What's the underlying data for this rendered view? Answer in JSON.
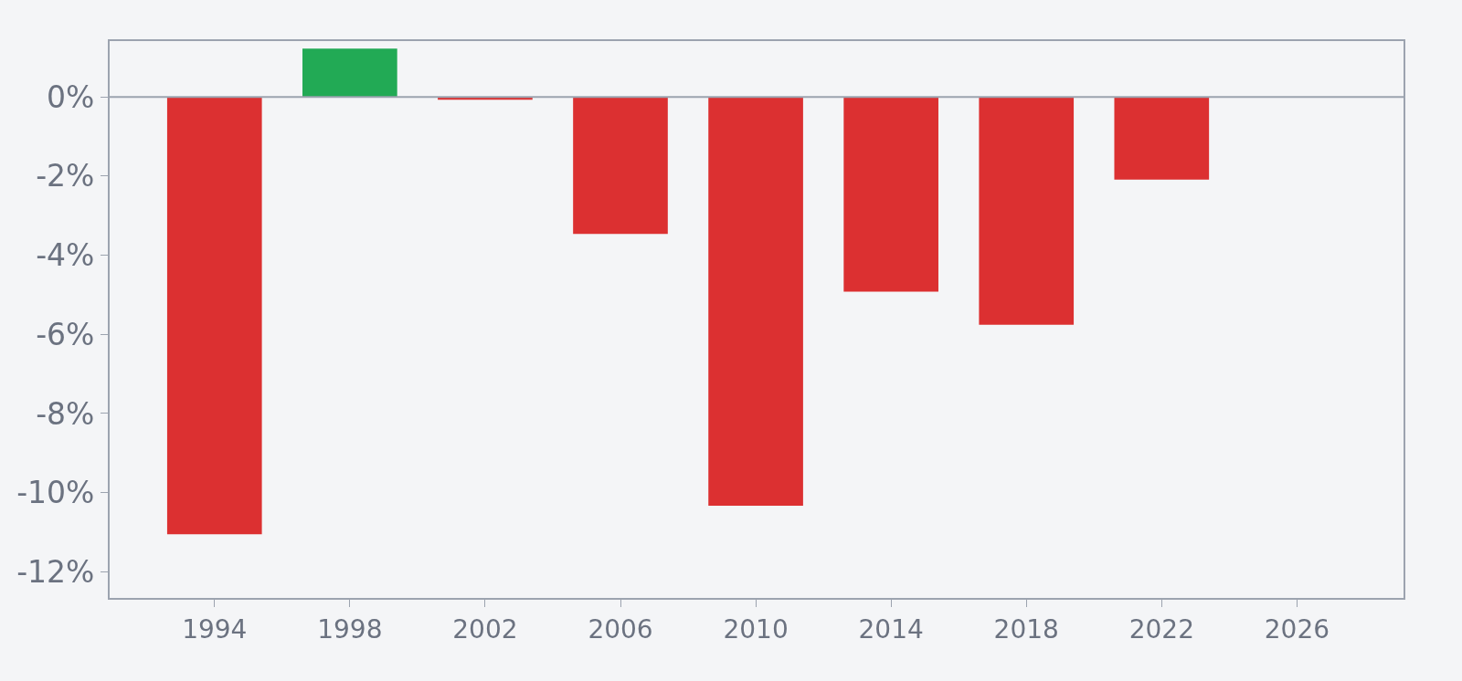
{
  "chart_data": {
    "type": "bar",
    "x": [
      1994,
      1998,
      2002,
      2006,
      2010,
      2014,
      2018,
      2022
    ],
    "values": [
      -11.05,
      1.22,
      -0.07,
      -3.46,
      -10.33,
      -4.92,
      -5.76,
      -2.09
    ],
    "colors": [
      "#dc3031",
      "#22aa55",
      "#dc3031",
      "#dc3031",
      "#dc3031",
      "#dc3031",
      "#dc3031",
      "#dc3031"
    ],
    "xlim": [
      1990.9,
      2029.15
    ],
    "xticks": [
      1994,
      1998,
      2002,
      2006,
      2010,
      2014,
      2018,
      2022,
      2026
    ],
    "ylim": [
      -12.66,
      1.41
    ],
    "yticks": [
      {
        "value": 0,
        "label": "0%"
      },
      {
        "value": -2,
        "label": "-2%"
      },
      {
        "value": -4,
        "label": "-4%"
      },
      {
        "value": -6,
        "label": "-6%"
      },
      {
        "value": -8,
        "label": "-8%"
      },
      {
        "value": -10,
        "label": "-10%"
      },
      {
        "value": -12,
        "label": "-12%"
      }
    ],
    "ref_lines": [
      {
        "axis": "y",
        "value": 0,
        "color": "#9ca3af"
      }
    ]
  }
}
